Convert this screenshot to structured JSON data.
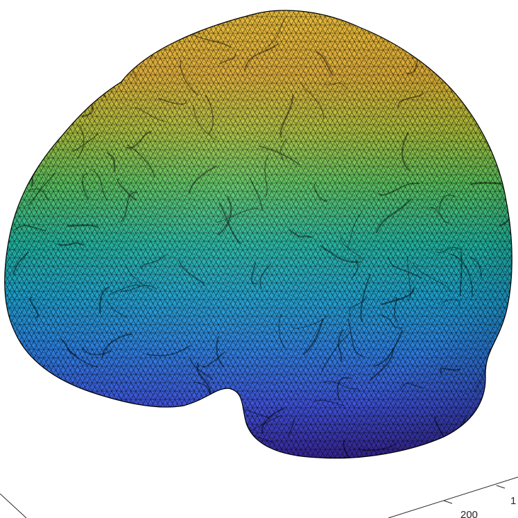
{
  "figure": {
    "colormap": [
      "#3e26a8",
      "#4a5cf8",
      "#2f96e8",
      "#14b8c4",
      "#3fcc7a",
      "#a8c53a",
      "#e9b437",
      "#f6c73a"
    ],
    "mesh_edge_color": "#000000",
    "background_color": "#ffffff",
    "axes_line_color": "#262626"
  },
  "axes": {
    "tick_labels": {
      "bottom_right_a": "200",
      "bottom_right_b": "1"
    }
  }
}
